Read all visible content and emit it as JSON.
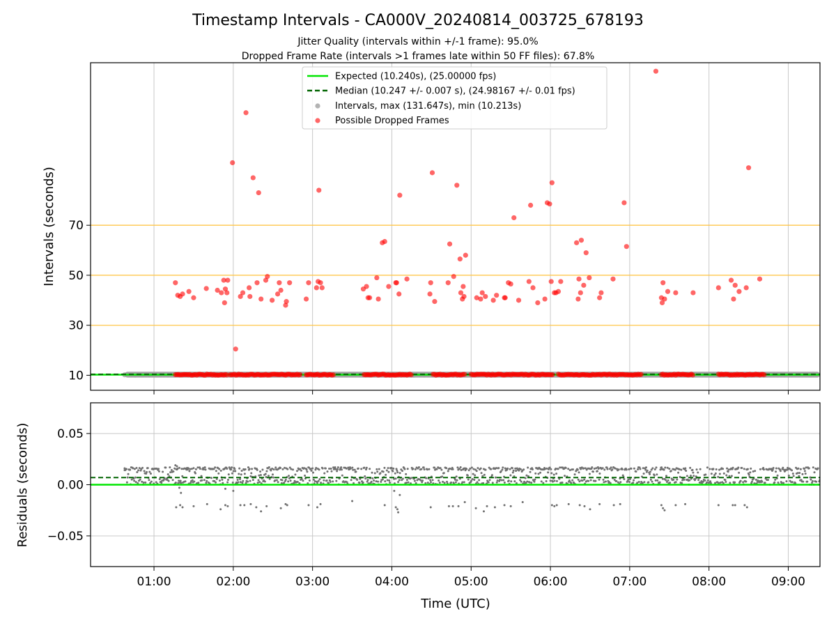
{
  "figure": {
    "title": "Timestamp Intervals - CA000V_20240814_003725_678193",
    "subtitle1": "Jitter Quality (intervals within +/-1 frame): 95.0%",
    "subtitle2": "Dropped Frame Rate (intervals >1 frames late within 50 FF files): 67.8%",
    "xlabel": "Time (UTC)"
  },
  "colors": {
    "expected": "#00e600",
    "median": "#006400",
    "intervals": "#a0a0a0",
    "dropped": "#ff0000",
    "threshold": "#ffc64a",
    "residual_points": "#707070",
    "grid": "#c8c8c8"
  },
  "chart_data": [
    {
      "type": "scatter",
      "ylabel": "Intervals (seconds)",
      "yticks": [
        10,
        30,
        50,
        70
      ],
      "xticks": [
        "01:00",
        "02:00",
        "03:00",
        "04:00",
        "05:00",
        "06:00",
        "07:00",
        "08:00",
        "09:00"
      ],
      "xlim_hours": [
        0.2,
        9.4
      ],
      "ylim": [
        4,
        135
      ],
      "legend_position": "top-center",
      "legend": [
        {
          "label": "Expected (10.240s), (25.00000 fps)",
          "kind": "line-solid"
        },
        {
          "label": "Median (10.247 +/- 0.007 s), (24.98167 +/- 0.01 fps)",
          "kind": "line-dashed"
        },
        {
          "label": "Intervals, max (131.647s), min (10.213s)",
          "kind": "marker-gray"
        },
        {
          "label": "Possible Dropped Frames",
          "kind": "marker-red"
        }
      ],
      "expected_interval": 10.24,
      "median_interval": 10.247,
      "threshold_lines": [
        30,
        50,
        70
      ],
      "intervals_x_range_hours": [
        0.63,
        9.4
      ],
      "dropped_frames": [
        [
          1.27,
          47
        ],
        [
          1.3,
          42
        ],
        [
          1.33,
          41.5
        ],
        [
          1.36,
          42.5
        ],
        [
          1.44,
          43.5
        ],
        [
          1.5,
          41
        ],
        [
          1.66,
          44.7
        ],
        [
          1.8,
          44
        ],
        [
          1.85,
          43
        ],
        [
          1.88,
          48
        ],
        [
          1.89,
          39
        ],
        [
          1.9,
          44.5
        ],
        [
          1.92,
          43
        ],
        [
          1.93,
          48
        ],
        [
          1.99,
          95
        ],
        [
          2.03,
          20.5
        ],
        [
          2.09,
          41.5
        ],
        [
          2.12,
          43
        ],
        [
          2.16,
          115
        ],
        [
          2.2,
          45
        ],
        [
          2.21,
          41.5
        ],
        [
          2.25,
          89
        ],
        [
          2.3,
          47
        ],
        [
          2.32,
          83
        ],
        [
          2.35,
          40.5
        ],
        [
          2.41,
          48
        ],
        [
          2.43,
          49.5
        ],
        [
          2.49,
          40
        ],
        [
          2.56,
          42.5
        ],
        [
          2.58,
          47
        ],
        [
          2.6,
          44
        ],
        [
          2.66,
          38
        ],
        [
          2.67,
          39.5
        ],
        [
          2.71,
          47
        ],
        [
          2.92,
          40.5
        ],
        [
          2.95,
          47
        ],
        [
          3.05,
          45
        ],
        [
          3.07,
          47.5
        ],
        [
          3.08,
          84
        ],
        [
          3.1,
          47
        ],
        [
          3.12,
          45
        ],
        [
          3.64,
          44.5
        ],
        [
          3.68,
          45.5
        ],
        [
          3.7,
          41
        ],
        [
          3.72,
          41
        ],
        [
          3.81,
          49
        ],
        [
          3.83,
          40.5
        ],
        [
          3.88,
          63
        ],
        [
          3.91,
          63.5
        ],
        [
          3.96,
          45.5
        ],
        [
          4.05,
          47
        ],
        [
          4.06,
          47
        ],
        [
          4.09,
          42.5
        ],
        [
          4.1,
          82
        ],
        [
          4.19,
          48.5
        ],
        [
          4.48,
          42.5
        ],
        [
          4.49,
          47
        ],
        [
          4.51,
          91
        ],
        [
          4.54,
          39.5
        ],
        [
          4.71,
          47
        ],
        [
          4.73,
          62.5
        ],
        [
          4.78,
          49.5
        ],
        [
          4.82,
          86
        ],
        [
          4.86,
          56.5
        ],
        [
          4.87,
          43
        ],
        [
          4.89,
          40.5
        ],
        [
          4.9,
          45.5
        ],
        [
          4.91,
          41.5
        ],
        [
          4.93,
          58
        ],
        [
          5.07,
          41
        ],
        [
          5.12,
          40.5
        ],
        [
          5.14,
          43
        ],
        [
          5.18,
          41.5
        ],
        [
          5.28,
          40
        ],
        [
          5.32,
          42
        ],
        [
          5.42,
          41
        ],
        [
          5.43,
          41
        ],
        [
          5.47,
          47
        ],
        [
          5.5,
          46.5
        ],
        [
          5.54,
          73
        ],
        [
          5.6,
          40
        ],
        [
          5.73,
          47.5
        ],
        [
          5.75,
          78
        ],
        [
          5.78,
          45
        ],
        [
          5.84,
          39
        ],
        [
          5.93,
          40.5
        ],
        [
          5.96,
          79
        ],
        [
          5.99,
          78.5
        ],
        [
          6.01,
          47.5
        ],
        [
          6.02,
          87
        ],
        [
          6.05,
          43
        ],
        [
          6.07,
          43
        ],
        [
          6.1,
          43.5
        ],
        [
          6.13,
          47.5
        ],
        [
          6.33,
          63
        ],
        [
          6.35,
          40.5
        ],
        [
          6.36,
          48.5
        ],
        [
          6.38,
          43
        ],
        [
          6.39,
          64
        ],
        [
          6.42,
          46
        ],
        [
          6.45,
          59
        ],
        [
          6.49,
          49
        ],
        [
          6.62,
          41
        ],
        [
          6.64,
          43
        ],
        [
          6.79,
          48.5
        ],
        [
          6.93,
          79
        ],
        [
          6.96,
          61.5
        ],
        [
          7.33,
          131.6
        ],
        [
          7.4,
          41
        ],
        [
          7.41,
          39
        ],
        [
          7.42,
          47
        ],
        [
          7.44,
          40.5
        ],
        [
          7.48,
          43.5
        ],
        [
          7.58,
          43
        ],
        [
          7.8,
          43
        ],
        [
          8.12,
          45
        ],
        [
          8.28,
          48
        ],
        [
          8.31,
          40.5
        ],
        [
          8.33,
          46
        ],
        [
          8.38,
          43.5
        ],
        [
          8.47,
          45
        ],
        [
          8.5,
          93
        ],
        [
          8.64,
          48.5
        ]
      ],
      "dropped_near_expected_runs_hours": [
        [
          1.27,
          1.93
        ],
        [
          1.96,
          2.85
        ],
        [
          2.92,
          3.27
        ],
        [
          3.65,
          4.25
        ],
        [
          4.52,
          4.92
        ],
        [
          5.0,
          6.03
        ],
        [
          6.1,
          7.15
        ],
        [
          7.4,
          7.8
        ],
        [
          8.12,
          8.7
        ]
      ]
    },
    {
      "type": "scatter",
      "ylabel": "Residuals (seconds)",
      "yticks": [
        "0.05",
        "0.00",
        "−0.05"
      ],
      "ytick_values": [
        0.05,
        0.0,
        -0.05
      ],
      "xticks": [
        "01:00",
        "02:00",
        "03:00",
        "04:00",
        "05:00",
        "06:00",
        "07:00",
        "08:00",
        "09:00"
      ],
      "xlim_hours": [
        0.2,
        9.4
      ],
      "ylim": [
        -0.08,
        0.08
      ],
      "expected_residual": 0.0,
      "median_residual": 0.007,
      "residual_band": [
        0.0,
        0.017
      ],
      "negative_residual_points": [
        [
          1.28,
          -0.022
        ],
        [
          1.33,
          -0.02
        ],
        [
          1.36,
          -0.022
        ],
        [
          1.5,
          -0.021
        ],
        [
          1.67,
          -0.019
        ],
        [
          1.84,
          -0.024
        ],
        [
          1.9,
          -0.02
        ],
        [
          1.93,
          -0.021
        ],
        [
          2.09,
          -0.02
        ],
        [
          2.14,
          -0.02
        ],
        [
          2.22,
          -0.019
        ],
        [
          2.29,
          -0.022
        ],
        [
          2.35,
          -0.026
        ],
        [
          2.42,
          -0.021
        ],
        [
          2.6,
          -0.023
        ],
        [
          2.66,
          -0.019
        ],
        [
          2.68,
          -0.02
        ],
        [
          2.95,
          -0.02
        ],
        [
          3.06,
          -0.022
        ],
        [
          3.1,
          -0.019
        ],
        [
          3.5,
          -0.016
        ],
        [
          3.91,
          -0.02
        ],
        [
          4.05,
          -0.022
        ],
        [
          4.07,
          -0.024
        ],
        [
          4.08,
          -0.027
        ],
        [
          4.1,
          -0.01
        ],
        [
          4.49,
          -0.022
        ],
        [
          4.72,
          -0.021
        ],
        [
          4.77,
          -0.021
        ],
        [
          4.84,
          -0.021
        ],
        [
          4.92,
          -0.017
        ],
        [
          5.06,
          -0.023
        ],
        [
          5.16,
          -0.026
        ],
        [
          5.2,
          -0.021
        ],
        [
          5.3,
          -0.022
        ],
        [
          5.42,
          -0.02
        ],
        [
          5.5,
          -0.021
        ],
        [
          5.65,
          -0.017
        ],
        [
          6.02,
          -0.02
        ],
        [
          6.05,
          -0.021
        ],
        [
          6.08,
          -0.02
        ],
        [
          6.23,
          -0.019
        ],
        [
          6.37,
          -0.02
        ],
        [
          6.43,
          -0.021
        ],
        [
          6.5,
          -0.024
        ],
        [
          6.62,
          -0.019
        ],
        [
          6.8,
          -0.02
        ],
        [
          6.88,
          -0.019
        ],
        [
          7.4,
          -0.02
        ],
        [
          7.42,
          -0.023
        ],
        [
          7.44,
          -0.025
        ],
        [
          7.58,
          -0.02
        ],
        [
          7.7,
          -0.019
        ],
        [
          8.12,
          -0.02
        ],
        [
          8.3,
          -0.02
        ],
        [
          8.33,
          -0.02
        ],
        [
          8.45,
          -0.02
        ],
        [
          8.48,
          -0.022
        ]
      ]
    }
  ]
}
